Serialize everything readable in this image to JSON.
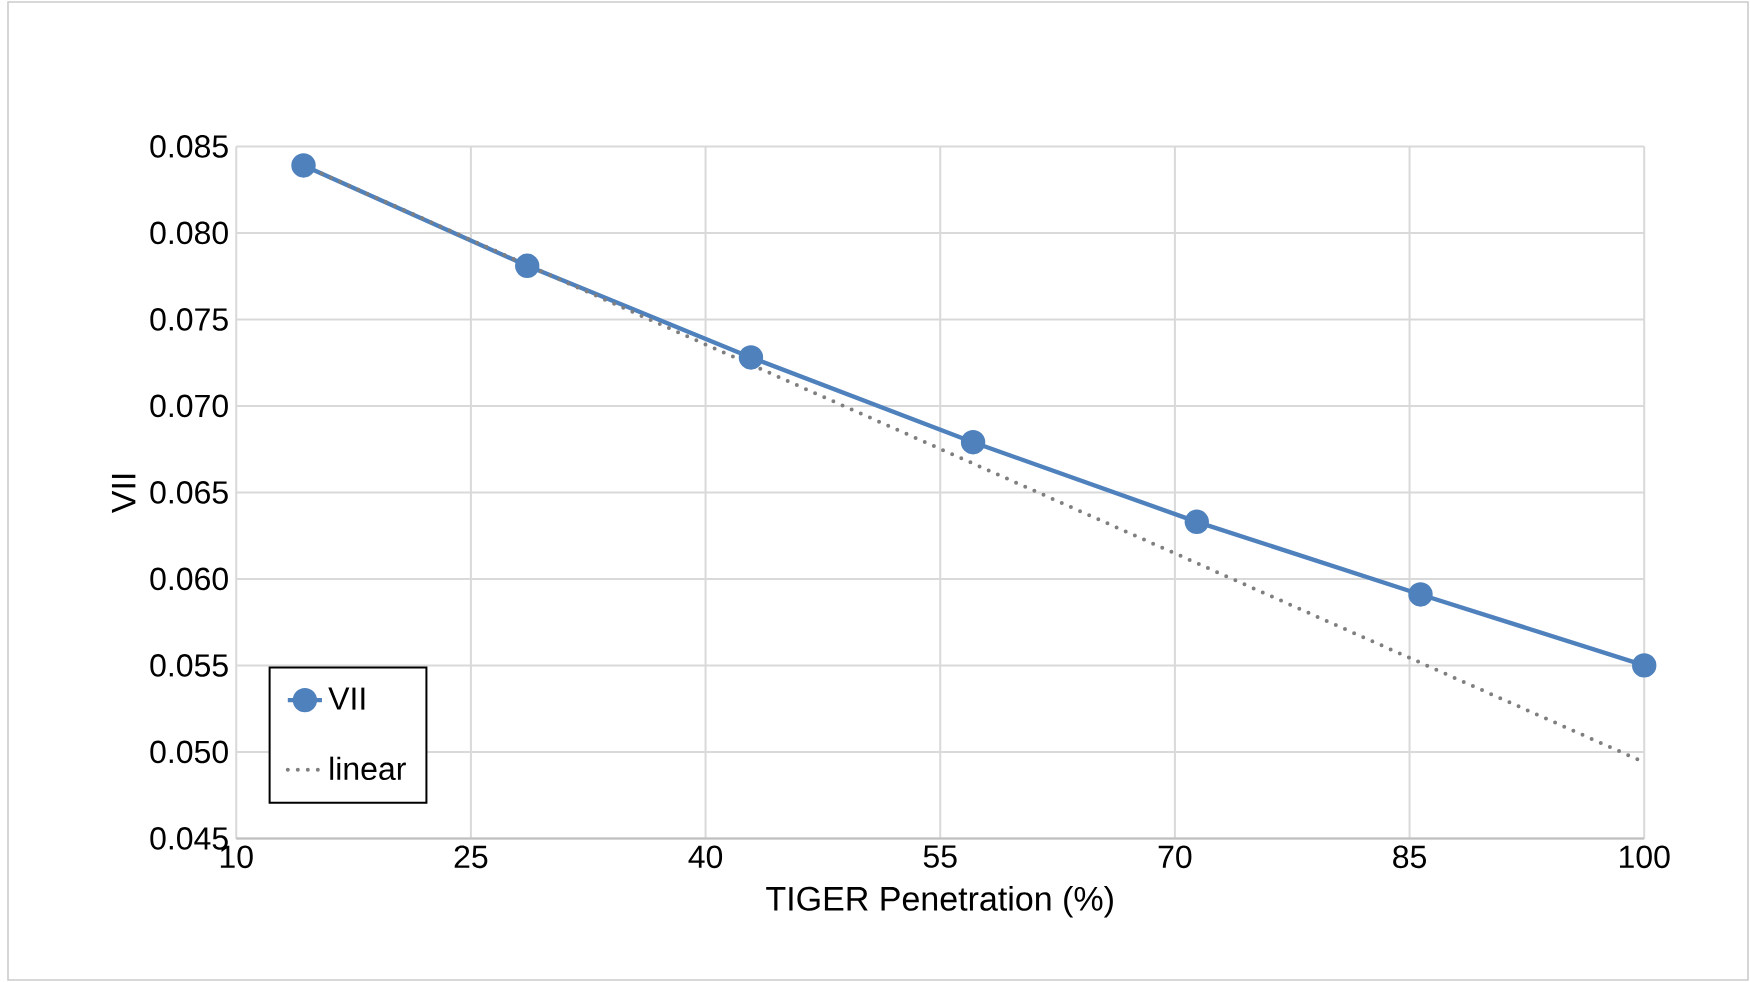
{
  "chart_data": {
    "type": "line",
    "xlabel": "TIGER Penetration (%)",
    "ylabel": "VII",
    "x": [
      14.3,
      28.6,
      42.9,
      57.1,
      71.4,
      85.7,
      100
    ],
    "series": [
      {
        "name": "VII",
        "color": "#4f81bd",
        "values": [
          0.0839,
          0.0781,
          0.0728,
          0.0679,
          0.0633,
          0.0591,
          0.055
        ],
        "marker": "circle",
        "line_style": "solid"
      },
      {
        "name": "linear",
        "color": "#7f7f7f",
        "type": "line",
        "x": [
          14.3,
          100
        ],
        "values": [
          0.0839,
          0.0494
        ],
        "marker": "none",
        "line_style": "dotted"
      }
    ],
    "xlim": [
      10,
      100
    ],
    "xticks": [
      10,
      25,
      40,
      55,
      70,
      85,
      100
    ],
    "ylim": [
      0.045,
      0.085
    ],
    "yticks": [
      {
        "value": 0.045,
        "label": "0.045"
      },
      {
        "value": 0.05,
        "label": "0.050"
      },
      {
        "value": 0.055,
        "label": "0.055"
      },
      {
        "value": 0.06,
        "label": "0.060"
      },
      {
        "value": 0.065,
        "label": "0.065"
      },
      {
        "value": 0.07,
        "label": "0.070"
      },
      {
        "value": 0.075,
        "label": "0.075"
      },
      {
        "value": 0.08,
        "label": "0.080"
      },
      {
        "value": 0.085,
        "label": "0.085"
      }
    ],
    "grid": true,
    "legend": "bottom left"
  }
}
